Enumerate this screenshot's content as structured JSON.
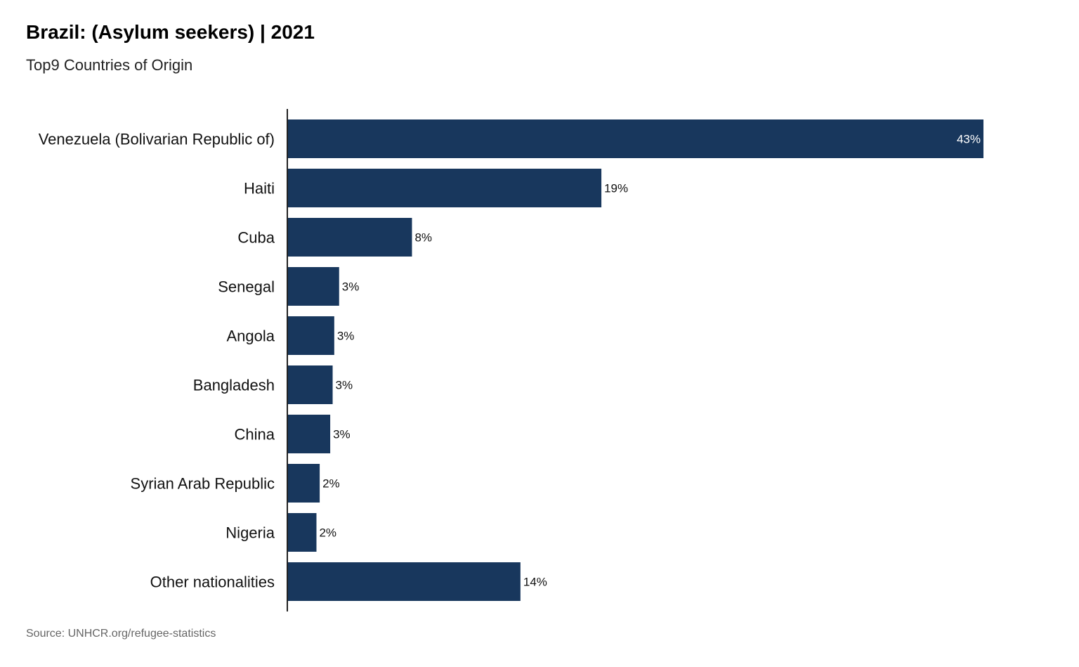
{
  "chart_data": {
    "type": "bar",
    "orientation": "horizontal",
    "title": "Brazil: (Asylum seekers) | 2021",
    "subtitle": "Top9 Countries of Origin",
    "source": "Source: UNHCR.org/refugee-statistics",
    "xlabel": "",
    "ylabel": "",
    "xlim": [
      0,
      45
    ],
    "grid": false,
    "bar_color": "#18375d",
    "categories": [
      "Venezuela (Bolivarian Republic of)",
      "Haiti",
      "Cuba",
      "Senegal",
      "Angola",
      "Bangladesh",
      "China",
      "Syrian Arab Republic",
      "Nigeria",
      "Other nationalities"
    ],
    "values": [
      43,
      19.4,
      7.7,
      3.2,
      2.9,
      2.8,
      2.65,
      2.0,
      1.8,
      14.4
    ],
    "labels": [
      "43%",
      "19%",
      "8%",
      "3%",
      "3%",
      "3%",
      "3%",
      "2%",
      "2%",
      "14%"
    ]
  }
}
